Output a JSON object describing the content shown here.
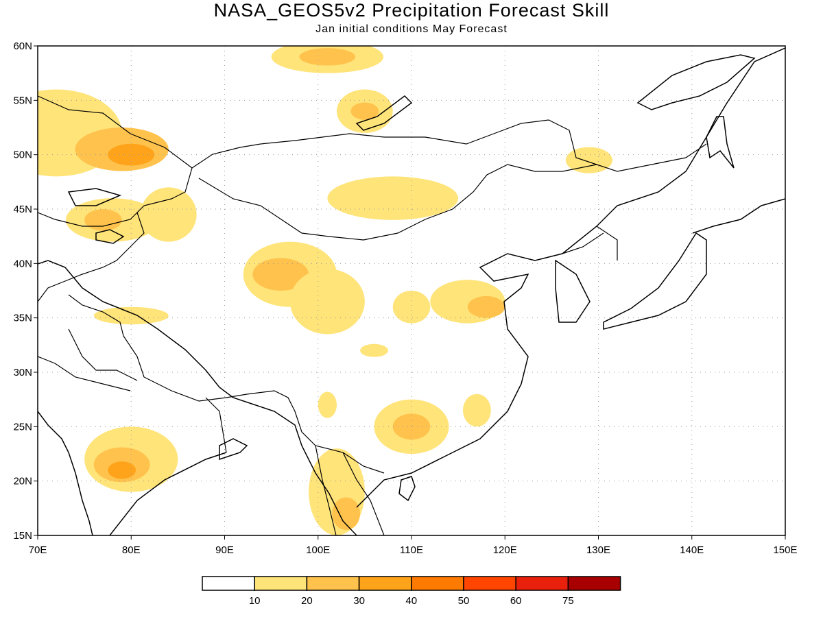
{
  "title": "NASA_GEOS5v2 Precipitation Forecast Skill",
  "subtitle": "Jan initial conditions  May Forecast",
  "map": {
    "lon_range": [
      70,
      150
    ],
    "lat_range": [
      15,
      60
    ],
    "lon_ticks": [
      "70E",
      "80E",
      "90E",
      "100E",
      "110E",
      "120E",
      "130E",
      "140E",
      "150E"
    ],
    "lat_ticks": [
      "15N",
      "20N",
      "25N",
      "30N",
      "35N",
      "40N",
      "45N",
      "50N",
      "55N",
      "60N"
    ],
    "gridlines": "dotted"
  },
  "colorbar": {
    "colors": [
      "#ffffff",
      "#ffe47a",
      "#ffc34d",
      "#ffa31a",
      "#ff7a00",
      "#ff4500",
      "#e8200c",
      "#a80000"
    ],
    "labels": [
      "10",
      "20",
      "30",
      "40",
      "50",
      "60",
      "75"
    ]
  },
  "regions": [
    {
      "level": 1,
      "lon": 72,
      "lat": 52,
      "rlon": 7,
      "rlat": 4
    },
    {
      "level": 2,
      "lon": 79,
      "lat": 50.5,
      "rlon": 5,
      "rlat": 2
    },
    {
      "level": 3,
      "lon": 80,
      "lat": 50,
      "rlon": 2.5,
      "rlat": 1
    },
    {
      "level": 1,
      "lon": 78,
      "lat": 44,
      "rlon": 5,
      "rlat": 2
    },
    {
      "level": 2,
      "lon": 77,
      "lat": 44,
      "rlon": 2,
      "rlat": 1
    },
    {
      "level": 1,
      "lon": 84,
      "lat": 44.5,
      "rlon": 3,
      "rlat": 2.5
    },
    {
      "level": 1,
      "lon": 101,
      "lat": 59,
      "rlon": 6,
      "rlat": 1.5
    },
    {
      "level": 2,
      "lon": 101,
      "lat": 59,
      "rlon": 3,
      "rlat": 0.8
    },
    {
      "level": 1,
      "lon": 105,
      "lat": 54,
      "rlon": 3,
      "rlat": 2
    },
    {
      "level": 2,
      "lon": 105,
      "lat": 54,
      "rlon": 1.5,
      "rlat": 0.8
    },
    {
      "level": 1,
      "lon": 129,
      "lat": 49.5,
      "rlon": 2.5,
      "rlat": 1.2
    },
    {
      "level": 1,
      "lon": 97,
      "lat": 39,
      "rlon": 5,
      "rlat": 3
    },
    {
      "level": 2,
      "lon": 96,
      "lat": 39,
      "rlon": 3,
      "rlat": 1.5
    },
    {
      "level": 1,
      "lon": 101,
      "lat": 36.5,
      "rlon": 4,
      "rlat": 3
    },
    {
      "level": 1,
      "lon": 108,
      "lat": 46,
      "rlon": 7,
      "rlat": 2
    },
    {
      "level": 1,
      "lon": 116,
      "lat": 36.5,
      "rlon": 4,
      "rlat": 2
    },
    {
      "level": 2,
      "lon": 118,
      "lat": 36,
      "rlon": 2,
      "rlat": 1
    },
    {
      "level": 1,
      "lon": 110,
      "lat": 36,
      "rlon": 2,
      "rlat": 1.5
    },
    {
      "level": 1,
      "lon": 110,
      "lat": 25,
      "rlon": 4,
      "rlat": 2.5
    },
    {
      "level": 2,
      "lon": 110,
      "lat": 25,
      "rlon": 2,
      "rlat": 1.2
    },
    {
      "level": 1,
      "lon": 80,
      "lat": 22,
      "rlon": 5,
      "rlat": 3
    },
    {
      "level": 2,
      "lon": 79,
      "lat": 21.5,
      "rlon": 3,
      "rlat": 1.6
    },
    {
      "level": 3,
      "lon": 79,
      "lat": 21,
      "rlon": 1.5,
      "rlat": 0.8
    },
    {
      "level": 1,
      "lon": 102,
      "lat": 19,
      "rlon": 3,
      "rlat": 4
    },
    {
      "level": 2,
      "lon": 103,
      "lat": 17,
      "rlon": 1.5,
      "rlat": 1.5
    },
    {
      "level": 1,
      "lon": 80,
      "lat": 35.2,
      "rlon": 4,
      "rlat": 0.8
    },
    {
      "level": 1,
      "lon": 101,
      "lat": 27,
      "rlon": 1,
      "rlat": 1.2
    },
    {
      "level": 1,
      "lon": 106,
      "lat": 32,
      "rlon": 1.5,
      "rlat": 0.6
    },
    {
      "level": 1,
      "lon": 117,
      "lat": 26.5,
      "rlon": 1.5,
      "rlat": 1.5
    }
  ]
}
